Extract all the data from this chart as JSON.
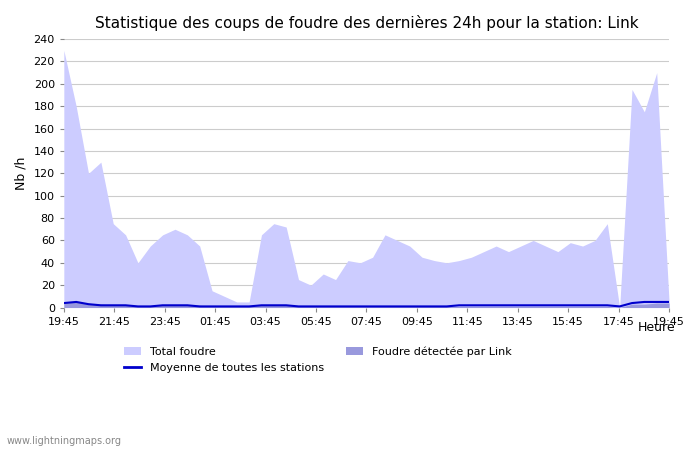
{
  "title": "Statistique des coups de foudre des dernières 24h pour la station: Link",
  "xlabel": "Heure",
  "ylabel": "Nb /h",
  "xlim": [
    0,
    48
  ],
  "ylim": [
    0,
    240
  ],
  "yticks": [
    0,
    20,
    40,
    60,
    80,
    100,
    120,
    140,
    160,
    180,
    200,
    220,
    240
  ],
  "xtick_labels": [
    "19:45",
    "21:45",
    "23:45",
    "01:45",
    "03:45",
    "05:45",
    "07:45",
    "09:45",
    "11:45",
    "13:45",
    "15:45",
    "17:45",
    "19:45"
  ],
  "background_color": "#ffffff",
  "plot_bg_color": "#ffffff",
  "grid_color": "#cccccc",
  "watermark": "www.lightningmaps.org",
  "total_foudre_color": "#ccccff",
  "foudre_link_color": "#9999dd",
  "moyenne_color": "#0000cc",
  "total_foudre_data": [
    230,
    180,
    120,
    130,
    75,
    65,
    40,
    55,
    65,
    70,
    65,
    55,
    15,
    10,
    5,
    5,
    65,
    75,
    72,
    25,
    20,
    30,
    25,
    42,
    40,
    45,
    65,
    60,
    55,
    45,
    42,
    40,
    42,
    45,
    50,
    55,
    50,
    55,
    60,
    55,
    50,
    58,
    55,
    60,
    75,
    0,
    195,
    175,
    210,
    5
  ],
  "foudre_link_data": [
    5,
    5,
    3,
    3,
    2,
    2,
    1,
    1,
    2,
    2,
    2,
    2,
    1,
    1,
    1,
    1,
    2,
    2,
    2,
    1,
    1,
    1,
    1,
    1,
    1,
    1,
    1,
    1,
    1,
    1,
    1,
    1,
    1,
    1,
    1,
    1,
    1,
    1,
    1,
    1,
    1,
    1,
    1,
    1,
    1,
    0,
    3,
    3,
    4,
    4
  ],
  "moyenne_data": [
    4,
    5,
    3,
    2,
    2,
    2,
    1,
    1,
    2,
    2,
    2,
    1,
    1,
    1,
    1,
    1,
    2,
    2,
    2,
    1,
    1,
    1,
    1,
    1,
    1,
    1,
    1,
    1,
    1,
    1,
    1,
    1,
    2,
    2,
    2,
    2,
    2,
    2,
    2,
    2,
    2,
    2,
    2,
    2,
    2,
    1,
    4,
    5,
    5,
    5
  ]
}
